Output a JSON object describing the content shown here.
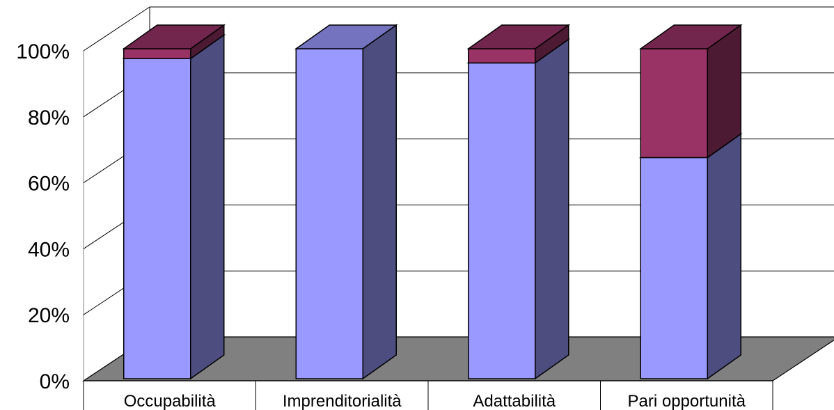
{
  "chart_data": {
    "type": "bar",
    "stacked": true,
    "three_d": true,
    "categories": [
      "Occupabilità",
      "Imprenditorialità",
      "Adattabilità",
      "Pari opportunità"
    ],
    "series": [
      {
        "color": "#9999ff",
        "values": [
          97,
          100,
          95.7,
          67
        ]
      },
      {
        "color": "#993366",
        "values": [
          3,
          0,
          4.3,
          33
        ]
      }
    ],
    "y_ticks": [
      "0%",
      "20%",
      "40%",
      "60%",
      "80%",
      "100%"
    ],
    "ylim": [
      0,
      100
    ],
    "grid": true,
    "legend": "none",
    "title": "",
    "xlabel": "",
    "ylabel": ""
  }
}
